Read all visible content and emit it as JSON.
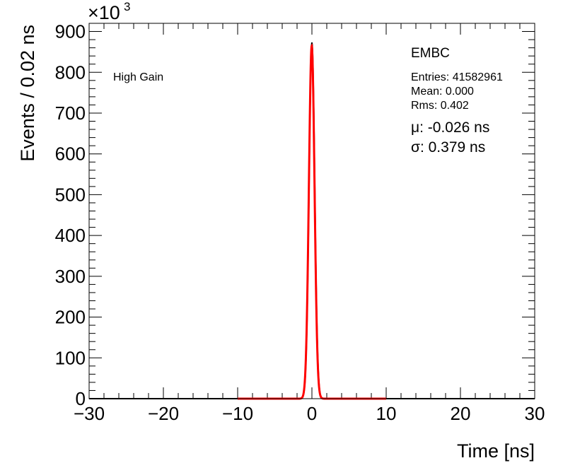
{
  "chart_data": {
    "type": "histogram",
    "x_label": "Time [ns]",
    "y_label": "Events / 0.02 ns",
    "y_multiplier_label": "×10",
    "y_multiplier_exponent": "3",
    "y_scale_factor": 1000,
    "xlim": [
      -30,
      30
    ],
    "ylim": [
      0,
      920
    ],
    "x_ticks": [
      -30,
      -20,
      -10,
      0,
      10,
      20,
      30
    ],
    "x_tick_labels": [
      "−30",
      "−20",
      "−10",
      "0",
      "10",
      "20",
      "30"
    ],
    "y_ticks": [
      0,
      100,
      200,
      300,
      400,
      500,
      600,
      700,
      800,
      900
    ],
    "y_tick_labels": [
      "0",
      "100",
      "200",
      "300",
      "400",
      "500",
      "600",
      "700",
      "800",
      "900"
    ],
    "bin_width": 0.02,
    "histogram": {
      "color": "#000000",
      "peak_x": 0.0,
      "peak_y": 873
    },
    "fit": {
      "function": "gaussian",
      "color": "#ff0000",
      "range": [
        -10,
        10
      ],
      "mean": -0.026,
      "sigma": 0.379,
      "amplitude": 865
    },
    "annotations": {
      "gain": "High Gain",
      "detector": "EMBC",
      "entries": "Entries: 41582961",
      "mean": "Mean: 0.000",
      "rms": "Rms: 0.402",
      "mu": "μ: -0.026 ns",
      "sigma": "σ: 0.379 ns"
    },
    "grid": false,
    "legend": "none"
  }
}
